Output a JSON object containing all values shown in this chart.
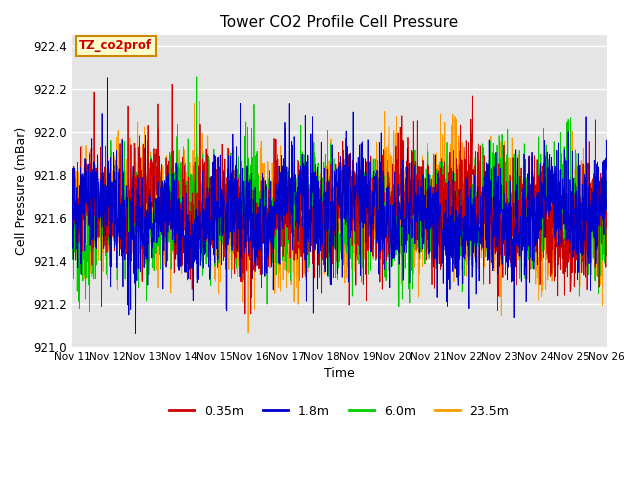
{
  "title": "Tower CO2 Profile Cell Pressure",
  "xlabel": "Time",
  "ylabel": "Cell Pressure (mBar)",
  "ylim": [
    921.0,
    922.45
  ],
  "yticks": [
    921.0,
    921.2,
    921.4,
    921.6,
    921.8,
    922.0,
    922.2,
    922.4
  ],
  "xtick_labels": [
    "Nov 11",
    "Nov 12",
    "Nov 13",
    "Nov 14",
    "Nov 15",
    "Nov 16",
    "Nov 17",
    "Nov 18",
    "Nov 19",
    "Nov 20",
    "Nov 21",
    "Nov 22",
    "Nov 23",
    "Nov 24",
    "Nov 25",
    "Nov 26"
  ],
  "legend_label": "TZ_co2prof",
  "series_labels": [
    "0.35m",
    "1.8m",
    "6.0m",
    "23.5m"
  ],
  "series_colors": [
    "#cc0000",
    "#0000cc",
    "#00cc00",
    "#ff9900"
  ],
  "background_color": "#ffffff",
  "plot_bg_color": "#e5e5e5",
  "grid_color": "#ffffff",
  "annotation_box_color": "#ffffcc",
  "annotation_border_color": "#cc8800",
  "annotation_text_color": "#cc0000",
  "num_points": 2000,
  "seed": 42,
  "base_pressure": 921.62,
  "noise_scale": 0.13
}
